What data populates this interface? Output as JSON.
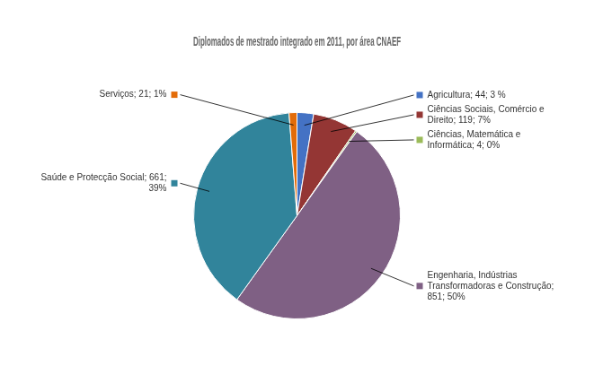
{
  "chart_data": {
    "type": "pie",
    "title": "Diplomados de mestrado integrado em 2011, por área CNAEF",
    "categories": [
      "Agricultura; 44; 3 %",
      "Ciências Sociais, Comércio e\nDireito; 119; 7%",
      "Ciências, Matemática e\nInformática; 4; 0%",
      "Engenharia, Indústrias\nTransformadoras e Construção;\n851; 50%",
      "Saúde e Protecção Social; 661;\n39%",
      "Serviços; 21; 1%"
    ],
    "values": [
      44,
      119,
      4,
      851,
      661,
      21
    ],
    "colors": [
      "#4472C4",
      "#943634",
      "#9BBB59",
      "#7F6084",
      "#31849B",
      "#E36C09"
    ]
  }
}
